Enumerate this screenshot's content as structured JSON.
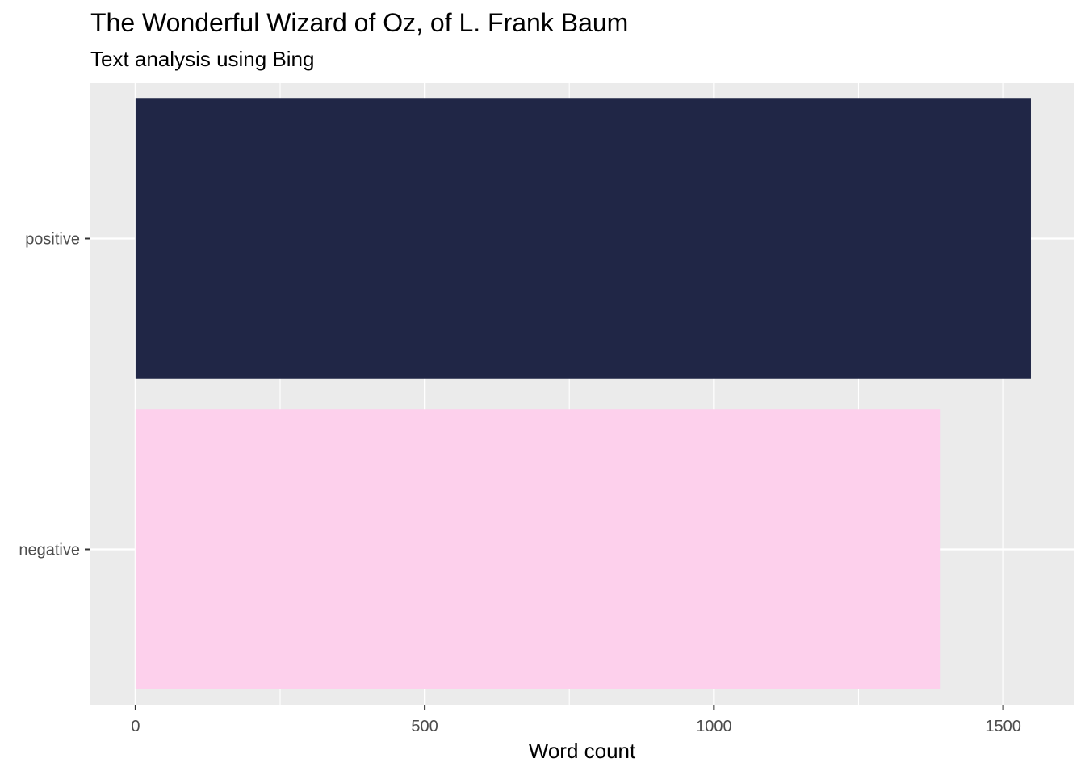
{
  "chart_data": {
    "type": "bar",
    "orientation": "horizontal",
    "title": "The Wonderful Wizard of Oz, of L. Frank Baum",
    "subtitle": "Text analysis using Bing",
    "xlabel": "Word count",
    "ylabel": "",
    "categories": [
      "positive",
      "negative"
    ],
    "values": [
      1548,
      1392
    ],
    "colors": [
      "#202646",
      "#fdd0ec"
    ],
    "xlim": [
      -78,
      1622
    ],
    "xticks": [
      0,
      500,
      1000,
      1500
    ],
    "xtick_labels": [
      "0",
      "500",
      "1000",
      "1500"
    ],
    "grid": true,
    "legend": "none",
    "panel_background": "#ebebeb"
  }
}
